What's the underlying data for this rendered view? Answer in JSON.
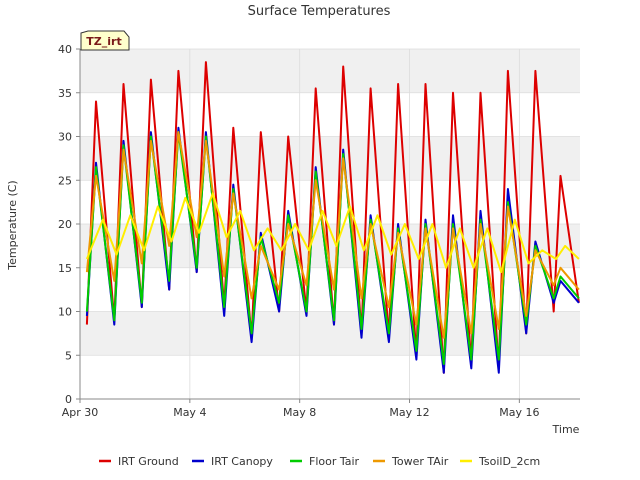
{
  "colors": {
    "plot_background": "#ffffff",
    "band": "#f0f0f0",
    "grid": "#dcdcdc",
    "badge_fill": "#ffffcc",
    "badge_text": "#7a1a1a"
  },
  "chart_data": {
    "type": "line",
    "title": "Surface Temperatures",
    "xlabel": "Time",
    "ylabel": "Temperature (C)",
    "badge": "TZ_irt",
    "ylim": [
      0,
      40
    ],
    "yticks": [
      0,
      5,
      10,
      15,
      20,
      25,
      30,
      35,
      40
    ],
    "xlim": [
      "2024-04-30",
      "2024-05-18T05:00"
    ],
    "xticks": [
      {
        "date": "2024-04-30",
        "label": "Apr 30"
      },
      {
        "date": "2024-05-04",
        "label": "May 4"
      },
      {
        "date": "2024-05-08",
        "label": "May 8"
      },
      {
        "date": "2024-05-12",
        "label": "May 12"
      },
      {
        "date": "2024-05-16",
        "label": "May 16"
      }
    ],
    "grid": true,
    "legend_position": "bottom",
    "series": [
      {
        "name": "IRT Ground",
        "color": "#dd0000",
        "points": [
          [
            "2024-04-30T06:00",
            8.5
          ],
          [
            "2024-04-30T14:00",
            34.0
          ],
          [
            "2024-05-01T06:00",
            9.0
          ],
          [
            "2024-05-01T14:00",
            36.0
          ],
          [
            "2024-05-02T06:00",
            10.5
          ],
          [
            "2024-05-02T14:00",
            36.5
          ],
          [
            "2024-05-03T06:00",
            12.5
          ],
          [
            "2024-05-03T14:00",
            37.5
          ],
          [
            "2024-05-04T06:00",
            14.5
          ],
          [
            "2024-05-04T14:00",
            38.5
          ],
          [
            "2024-05-05T06:00",
            10.5
          ],
          [
            "2024-05-05T14:00",
            31.0
          ],
          [
            "2024-05-06T06:00",
            7.0
          ],
          [
            "2024-05-06T14:00",
            30.5
          ],
          [
            "2024-05-07T06:00",
            10.0
          ],
          [
            "2024-05-07T14:00",
            30.0
          ],
          [
            "2024-05-08T06:00",
            10.0
          ],
          [
            "2024-05-08T14:00",
            35.5
          ],
          [
            "2024-05-09T06:00",
            8.5
          ],
          [
            "2024-05-09T14:00",
            38.0
          ],
          [
            "2024-05-10T06:00",
            7.5
          ],
          [
            "2024-05-10T14:00",
            35.5
          ],
          [
            "2024-05-11T06:00",
            7.0
          ],
          [
            "2024-05-11T14:00",
            36.0
          ],
          [
            "2024-05-12T06:00",
            5.0
          ],
          [
            "2024-05-12T14:00",
            36.0
          ],
          [
            "2024-05-13T06:00",
            3.0
          ],
          [
            "2024-05-13T14:00",
            35.0
          ],
          [
            "2024-05-14T06:00",
            4.0
          ],
          [
            "2024-05-14T14:00",
            35.0
          ],
          [
            "2024-05-15T06:00",
            3.5
          ],
          [
            "2024-05-15T14:00",
            37.5
          ],
          [
            "2024-05-16T06:00",
            7.5
          ],
          [
            "2024-05-16T14:00",
            37.5
          ],
          [
            "2024-05-17T06:00",
            10.0
          ],
          [
            "2024-05-17T12:00",
            25.5
          ],
          [
            "2024-05-18T04:00",
            11.0
          ]
        ]
      },
      {
        "name": "IRT Canopy",
        "color": "#0000cc",
        "points": [
          [
            "2024-04-30T06:00",
            9.5
          ],
          [
            "2024-04-30T14:00",
            27.0
          ],
          [
            "2024-05-01T06:00",
            8.5
          ],
          [
            "2024-05-01T14:00",
            29.5
          ],
          [
            "2024-05-02T06:00",
            10.5
          ],
          [
            "2024-05-02T14:00",
            30.5
          ],
          [
            "2024-05-03T06:00",
            12.5
          ],
          [
            "2024-05-03T14:00",
            31.0
          ],
          [
            "2024-05-04T06:00",
            14.5
          ],
          [
            "2024-05-04T14:00",
            30.5
          ],
          [
            "2024-05-05T06:00",
            9.5
          ],
          [
            "2024-05-05T14:00",
            24.5
          ],
          [
            "2024-05-06T06:00",
            6.5
          ],
          [
            "2024-05-06T14:00",
            19.0
          ],
          [
            "2024-05-07T06:00",
            10.0
          ],
          [
            "2024-05-07T14:00",
            21.5
          ],
          [
            "2024-05-08T06:00",
            9.5
          ],
          [
            "2024-05-08T14:00",
            26.5
          ],
          [
            "2024-05-09T06:00",
            8.5
          ],
          [
            "2024-05-09T14:00",
            28.5
          ],
          [
            "2024-05-10T06:00",
            7.0
          ],
          [
            "2024-05-10T14:00",
            21.0
          ],
          [
            "2024-05-11T06:00",
            6.5
          ],
          [
            "2024-05-11T14:00",
            20.0
          ],
          [
            "2024-05-12T06:00",
            4.5
          ],
          [
            "2024-05-12T14:00",
            20.5
          ],
          [
            "2024-05-13T06:00",
            3.0
          ],
          [
            "2024-05-13T14:00",
            21.0
          ],
          [
            "2024-05-14T06:00",
            3.5
          ],
          [
            "2024-05-14T14:00",
            21.5
          ],
          [
            "2024-05-15T06:00",
            3.0
          ],
          [
            "2024-05-15T14:00",
            24.0
          ],
          [
            "2024-05-16T06:00",
            7.5
          ],
          [
            "2024-05-16T14:00",
            18.0
          ],
          [
            "2024-05-17T06:00",
            11.0
          ],
          [
            "2024-05-17T12:00",
            13.5
          ],
          [
            "2024-05-18T04:00",
            11.0
          ]
        ]
      },
      {
        "name": "Floor Tair",
        "color": "#00cc00",
        "points": [
          [
            "2024-04-30T06:00",
            10.0
          ],
          [
            "2024-04-30T14:00",
            26.5
          ],
          [
            "2024-05-01T06:00",
            9.0
          ],
          [
            "2024-05-01T14:00",
            29.0
          ],
          [
            "2024-05-02T06:00",
            11.0
          ],
          [
            "2024-05-02T14:00",
            30.0
          ],
          [
            "2024-05-03T06:00",
            13.5
          ],
          [
            "2024-05-03T14:00",
            30.5
          ],
          [
            "2024-05-04T06:00",
            15.0
          ],
          [
            "2024-05-04T14:00",
            30.0
          ],
          [
            "2024-05-05T06:00",
            10.5
          ],
          [
            "2024-05-05T14:00",
            24.0
          ],
          [
            "2024-05-06T06:00",
            7.5
          ],
          [
            "2024-05-06T14:00",
            18.5
          ],
          [
            "2024-05-07T06:00",
            11.0
          ],
          [
            "2024-05-07T14:00",
            21.0
          ],
          [
            "2024-05-08T06:00",
            10.0
          ],
          [
            "2024-05-08T14:00",
            26.0
          ],
          [
            "2024-05-09T06:00",
            9.0
          ],
          [
            "2024-05-09T14:00",
            28.0
          ],
          [
            "2024-05-10T06:00",
            8.0
          ],
          [
            "2024-05-10T14:00",
            20.5
          ],
          [
            "2024-05-11T06:00",
            7.5
          ],
          [
            "2024-05-11T14:00",
            19.5
          ],
          [
            "2024-05-12T06:00",
            5.5
          ],
          [
            "2024-05-12T14:00",
            20.0
          ],
          [
            "2024-05-13T06:00",
            4.0
          ],
          [
            "2024-05-13T14:00",
            20.0
          ],
          [
            "2024-05-14T06:00",
            4.5
          ],
          [
            "2024-05-14T14:00",
            20.5
          ],
          [
            "2024-05-15T06:00",
            4.5
          ],
          [
            "2024-05-15T14:00",
            22.5
          ],
          [
            "2024-05-16T06:00",
            8.5
          ],
          [
            "2024-05-16T14:00",
            17.5
          ],
          [
            "2024-05-17T06:00",
            11.5
          ],
          [
            "2024-05-17T12:00",
            14.0
          ],
          [
            "2024-05-18T04:00",
            11.5
          ]
        ]
      },
      {
        "name": "Tower TAir",
        "color": "#ee9900",
        "points": [
          [
            "2024-04-30T06:00",
            14.5
          ],
          [
            "2024-04-30T14:00",
            25.5
          ],
          [
            "2024-05-01T06:00",
            13.5
          ],
          [
            "2024-05-01T14:00",
            28.5
          ],
          [
            "2024-05-02T06:00",
            15.5
          ],
          [
            "2024-05-02T14:00",
            29.5
          ],
          [
            "2024-05-03T06:00",
            17.5
          ],
          [
            "2024-05-03T14:00",
            30.5
          ],
          [
            "2024-05-04T06:00",
            18.5
          ],
          [
            "2024-05-04T14:00",
            29.5
          ],
          [
            "2024-05-05T06:00",
            14.0
          ],
          [
            "2024-05-05T14:00",
            23.5
          ],
          [
            "2024-05-06T06:00",
            11.5
          ],
          [
            "2024-05-06T14:00",
            17.5
          ],
          [
            "2024-05-07T06:00",
            12.5
          ],
          [
            "2024-05-07T14:00",
            20.0
          ],
          [
            "2024-05-08T06:00",
            13.0
          ],
          [
            "2024-05-08T14:00",
            25.0
          ],
          [
            "2024-05-09T06:00",
            12.5
          ],
          [
            "2024-05-09T14:00",
            27.5
          ],
          [
            "2024-05-10T06:00",
            11.5
          ],
          [
            "2024-05-10T14:00",
            20.0
          ],
          [
            "2024-05-11T06:00",
            10.5
          ],
          [
            "2024-05-11T14:00",
            19.0
          ],
          [
            "2024-05-12T06:00",
            8.5
          ],
          [
            "2024-05-12T14:00",
            19.5
          ],
          [
            "2024-05-13T06:00",
            7.0
          ],
          [
            "2024-05-13T14:00",
            19.5
          ],
          [
            "2024-05-14T06:00",
            7.5
          ],
          [
            "2024-05-14T14:00",
            20.0
          ],
          [
            "2024-05-15T06:00",
            8.0
          ],
          [
            "2024-05-15T14:00",
            22.0
          ],
          [
            "2024-05-16T06:00",
            9.5
          ],
          [
            "2024-05-16T14:00",
            17.0
          ],
          [
            "2024-05-17T06:00",
            13.0
          ],
          [
            "2024-05-17T12:00",
            15.0
          ],
          [
            "2024-05-18T04:00",
            12.5
          ]
        ]
      },
      {
        "name": "TsoilD_2cm",
        "color": "#ffee00",
        "points": [
          [
            "2024-04-30T06:00",
            16.0
          ],
          [
            "2024-04-30T20:00",
            20.5
          ],
          [
            "2024-05-01T08:00",
            16.5
          ],
          [
            "2024-05-01T20:00",
            21.0
          ],
          [
            "2024-05-02T08:00",
            17.0
          ],
          [
            "2024-05-02T20:00",
            22.0
          ],
          [
            "2024-05-03T08:00",
            18.0
          ],
          [
            "2024-05-03T20:00",
            23.0
          ],
          [
            "2024-05-04T08:00",
            19.0
          ],
          [
            "2024-05-04T20:00",
            23.5
          ],
          [
            "2024-05-05T08:00",
            18.5
          ],
          [
            "2024-05-05T20:00",
            21.5
          ],
          [
            "2024-05-06T08:00",
            17.0
          ],
          [
            "2024-05-06T20:00",
            19.5
          ],
          [
            "2024-05-07T08:00",
            17.0
          ],
          [
            "2024-05-07T20:00",
            20.0
          ],
          [
            "2024-05-08T08:00",
            17.0
          ],
          [
            "2024-05-08T20:00",
            21.5
          ],
          [
            "2024-05-09T08:00",
            17.5
          ],
          [
            "2024-05-09T20:00",
            22.0
          ],
          [
            "2024-05-10T08:00",
            17.0
          ],
          [
            "2024-05-10T20:00",
            21.0
          ],
          [
            "2024-05-11T08:00",
            16.5
          ],
          [
            "2024-05-11T20:00",
            20.0
          ],
          [
            "2024-05-12T08:00",
            16.0
          ],
          [
            "2024-05-12T20:00",
            20.0
          ],
          [
            "2024-05-13T08:00",
            15.0
          ],
          [
            "2024-05-13T20:00",
            19.5
          ],
          [
            "2024-05-14T08:00",
            15.0
          ],
          [
            "2024-05-14T20:00",
            19.5
          ],
          [
            "2024-05-15T08:00",
            14.5
          ],
          [
            "2024-05-15T20:00",
            20.5
          ],
          [
            "2024-05-16T08:00",
            15.5
          ],
          [
            "2024-05-16T20:00",
            17.0
          ],
          [
            "2024-05-17T08:00",
            16.0
          ],
          [
            "2024-05-17T16:00",
            17.5
          ],
          [
            "2024-05-18T04:00",
            16.0
          ]
        ]
      }
    ]
  }
}
